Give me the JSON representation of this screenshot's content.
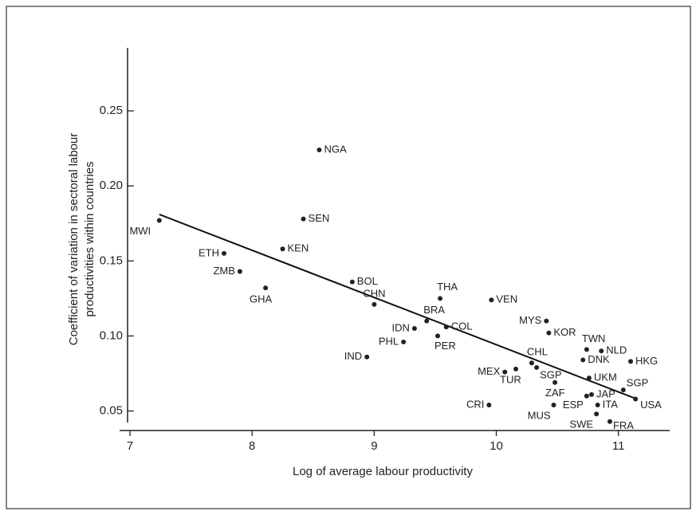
{
  "chart_data": {
    "type": "scatter",
    "x_label": "Log of average labour productivity",
    "y_label": [
      "Coefficient of variation in sectoral labour",
      "productivities within countries"
    ],
    "labels": [
      "MWI",
      "NGA",
      "SEN",
      "KEN",
      "ETH",
      "ZMB",
      "GHA",
      "BOL",
      "CHN",
      "THA",
      "VEN",
      "BRA",
      "COL",
      "IDN",
      "PHL",
      "PER",
      "IND",
      "MYS",
      "KOR",
      "TWN",
      "NLD",
      "DNK",
      "HKG",
      "CHL",
      "SGP",
      "MEX",
      "TUR",
      "ZAF",
      "UKM",
      "SGP",
      "USA",
      "JAP",
      "ITA",
      "MUS",
      "ESP",
      "CRI",
      "SWE",
      "FRA"
    ],
    "x": [
      7.24,
      8.55,
      8.42,
      8.25,
      7.77,
      7.9,
      8.11,
      8.82,
      9.0,
      9.54,
      9.96,
      9.43,
      9.59,
      9.33,
      9.24,
      9.52,
      8.94,
      10.41,
      10.43,
      10.74,
      10.86,
      10.71,
      11.1,
      10.29,
      10.33,
      10.07,
      10.16,
      10.48,
      10.76,
      11.04,
      11.14,
      10.78,
      10.83,
      10.47,
      10.74,
      9.94,
      10.82,
      10.93
    ],
    "values": [
      0.177,
      0.224,
      0.178,
      0.158,
      0.155,
      0.143,
      0.132,
      0.136,
      0.121,
      0.125,
      0.124,
      0.11,
      0.106,
      0.105,
      0.096,
      0.1,
      0.086,
      0.11,
      0.102,
      0.091,
      0.09,
      0.084,
      0.083,
      0.082,
      0.079,
      0.076,
      0.078,
      0.069,
      0.072,
      0.064,
      0.058,
      0.061,
      0.054,
      0.054,
      0.06,
      0.054,
      0.048,
      0.043
    ],
    "color": "#222222",
    "trend_line": {
      "x": [
        7.24,
        11.15
      ],
      "y": [
        0.181,
        0.058
      ]
    },
    "xlim": [
      6.98,
      11.42
    ],
    "ylim": [
      0.037,
      0.292
    ],
    "xticks": [
      7,
      8,
      9,
      10,
      11
    ],
    "yticks": [
      0.05,
      {
        "value": 0.1,
        "label": "0.10"
      },
      0.15,
      {
        "value": 0.2,
        "label": "0.20"
      },
      0.25
    ]
  }
}
